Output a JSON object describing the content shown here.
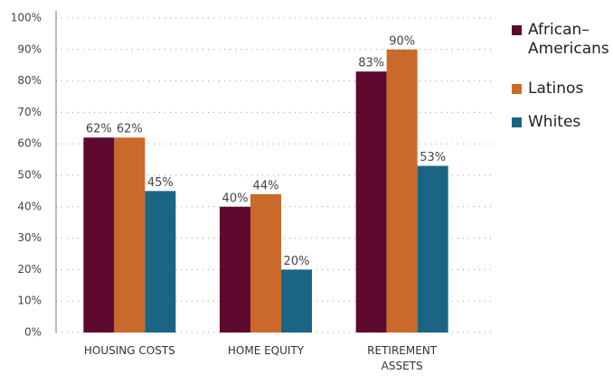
{
  "chart_data": {
    "type": "bar",
    "categories": [
      "HOUSING COSTS",
      "HOME EQUITY",
      "RETIREMENT ASSETS"
    ],
    "series": [
      {
        "name": "African–Americans",
        "color": "#5e0a2f",
        "values": [
          62,
          40,
          83
        ],
        "value_labels": [
          "62%",
          "40%",
          "83%"
        ]
      },
      {
        "name": "Latinos",
        "color": "#c96a2b",
        "values": [
          62,
          44,
          90
        ],
        "value_labels": [
          "62%",
          "44%",
          "90%"
        ]
      },
      {
        "name": "Whites",
        "color": "#1b6584",
        "values": [
          45,
          20,
          53
        ],
        "value_labels": [
          "45%",
          "20%",
          "53%"
        ]
      }
    ],
    "ylim": [
      0,
      100
    ],
    "yticks": [
      {
        "value": 0,
        "label": "0%"
      },
      {
        "value": 10,
        "label": "10%"
      },
      {
        "value": 20,
        "label": "20%"
      },
      {
        "value": 30,
        "label": "30%"
      },
      {
        "value": 40,
        "label": "40%"
      },
      {
        "value": 50,
        "label": "50%"
      },
      {
        "value": 60,
        "label": "60%"
      },
      {
        "value": 70,
        "label": "70%"
      },
      {
        "value": 80,
        "label": "80%"
      },
      {
        "value": 90,
        "label": "90%"
      },
      {
        "value": 100,
        "label": "100%"
      }
    ],
    "grid": true,
    "legend": "right"
  }
}
